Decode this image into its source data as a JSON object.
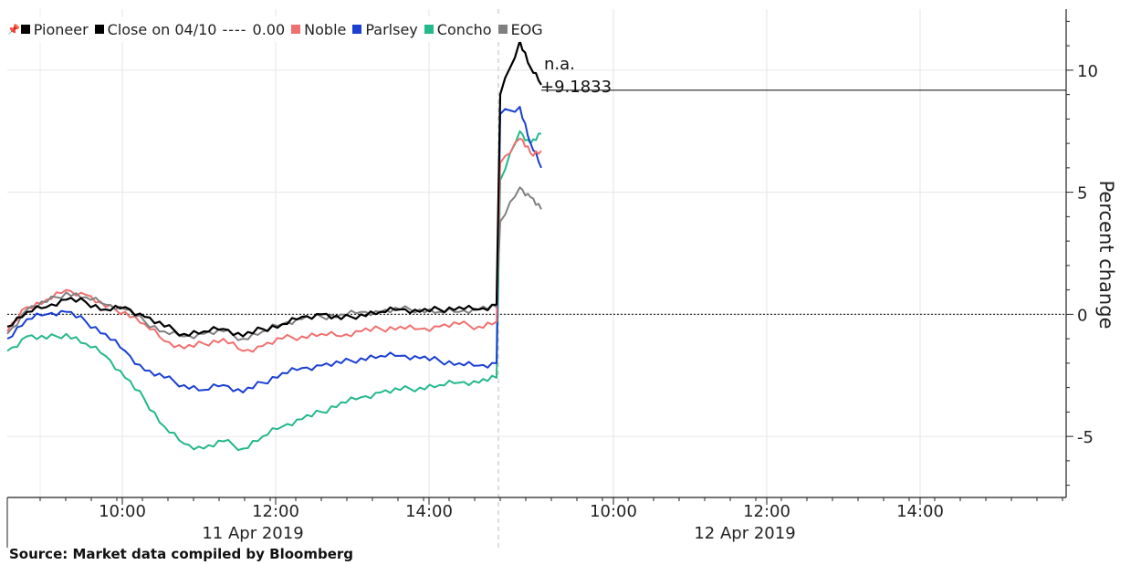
{
  "chart_data": {
    "type": "line",
    "ylabel": "Percent change",
    "ylim": [
      -7.5,
      12.5
    ],
    "yticks": [
      "10",
      "5",
      "0",
      "-5"
    ],
    "xticks": [
      "10:00",
      "12:00",
      "14:00",
      "10:00",
      "12:00",
      "14:00"
    ],
    "day_labels": [
      "11 Apr 2019",
      "12 Apr 2019"
    ],
    "legend": {
      "pioneer": "Pioneer",
      "close": "Close on 04/10",
      "close_dashes": "----",
      "close_value": "0.00",
      "noble": "Noble",
      "parsley": "Parlsey",
      "concho": "Concho",
      "eog": "EOG"
    },
    "annotation": {
      "label": "n.a.",
      "value": "+9.1833"
    },
    "colors": {
      "pioneer": "#000000",
      "noble": "#f07070",
      "parsley": "#1a3fd1",
      "concho": "#24b88a",
      "eog": "#808080",
      "close": "#000000"
    },
    "series": [
      {
        "name": "Pioneer",
        "key": "pioneer",
        "values": [
          -0.5,
          0.1,
          0.3,
          0.6,
          0.5,
          0.2,
          0.3,
          -0.1,
          -0.5,
          -0.8,
          -0.7,
          -0.6,
          -0.9,
          -0.6,
          -0.4,
          -0.1,
          0.0,
          -0.2,
          0.0,
          0.1,
          0.2,
          0.1,
          0.2,
          0.3,
          0.2,
          0.4,
          9.0,
          11.2,
          10.1,
          9.4
        ]
      },
      {
        "name": "Noble",
        "key": "noble",
        "values": [
          -0.7,
          0.3,
          0.6,
          1.0,
          0.8,
          0.3,
          0.1,
          -0.4,
          -1.1,
          -1.4,
          -1.2,
          -1.0,
          -1.5,
          -1.3,
          -1.0,
          -0.9,
          -0.8,
          -0.9,
          -0.7,
          -0.6,
          -0.5,
          -0.6,
          -0.5,
          -0.4,
          -0.5,
          -0.3,
          6.2,
          7.2,
          6.6,
          6.7
        ]
      },
      {
        "name": "Parlsey",
        "key": "parsley",
        "values": [
          -1.0,
          -0.2,
          0.0,
          0.1,
          -0.3,
          -0.8,
          -1.5,
          -2.3,
          -2.6,
          -2.9,
          -3.1,
          -2.9,
          -3.2,
          -2.8,
          -2.4,
          -2.2,
          -2.1,
          -2.0,
          -1.8,
          -1.7,
          -1.7,
          -1.8,
          -1.9,
          -2.0,
          -2.1,
          -2.0,
          8.2,
          8.5,
          7.0,
          6.0
        ]
      },
      {
        "name": "Concho",
        "key": "concho",
        "values": [
          -1.5,
          -0.9,
          -1.0,
          -0.8,
          -1.2,
          -1.7,
          -2.6,
          -3.5,
          -4.6,
          -5.3,
          -5.5,
          -5.2,
          -5.5,
          -5.0,
          -4.6,
          -4.3,
          -4.0,
          -3.6,
          -3.4,
          -3.2,
          -3.1,
          -3.0,
          -2.9,
          -2.8,
          -2.8,
          -2.6,
          5.5,
          7.5,
          7.0,
          7.4
        ]
      },
      {
        "name": "EOG",
        "key": "eog",
        "values": [
          -0.8,
          0.2,
          0.5,
          0.9,
          0.7,
          0.4,
          0.2,
          -0.3,
          -0.7,
          -0.9,
          -0.8,
          -0.7,
          -1.0,
          -0.7,
          -0.4,
          -0.2,
          -0.1,
          0.0,
          0.1,
          0.1,
          0.2,
          0.2,
          0.1,
          0.1,
          0.2,
          0.3,
          3.8,
          5.2,
          4.8,
          4.3
        ]
      }
    ],
    "grid": true,
    "legend_position": "top-left"
  }
}
